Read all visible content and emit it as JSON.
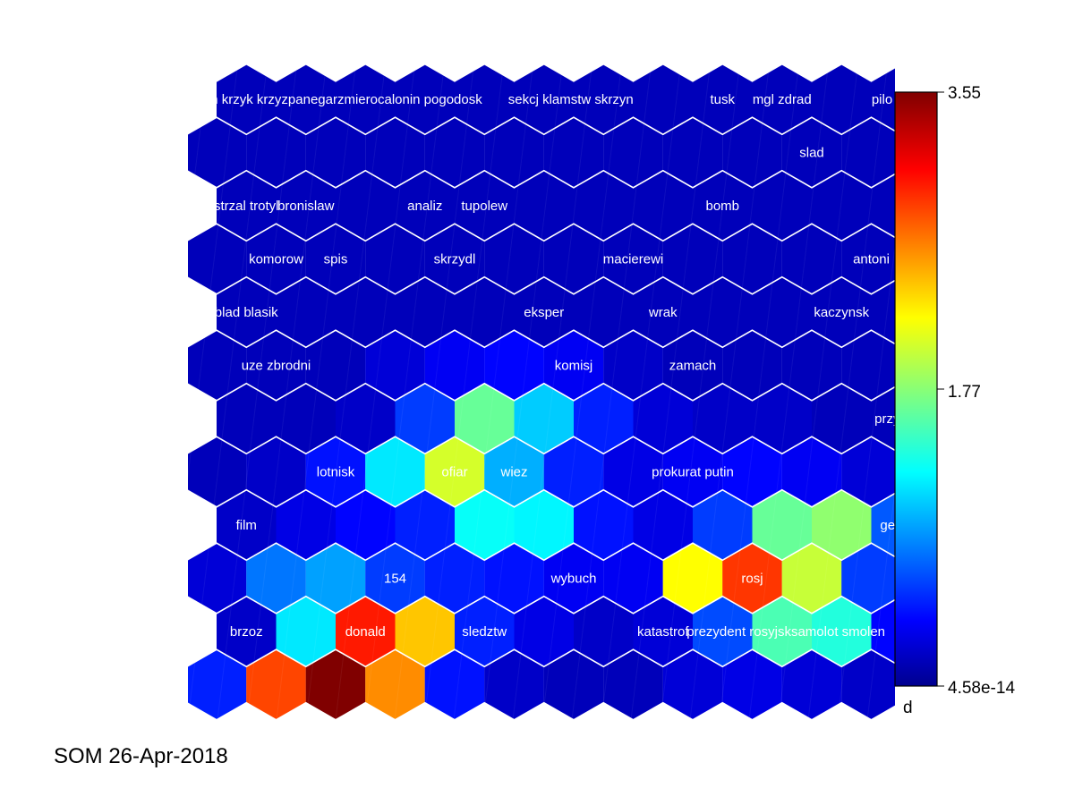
{
  "chart_data": {
    "type": "heatmap",
    "grid": "hexagonal",
    "title": "",
    "rows": 12,
    "cols": 12,
    "clim": [
      4.58e-14,
      3.55
    ],
    "colormap": "jet",
    "colorbar_ticks": [
      "3.55",
      "1.77",
      "4.58e-14"
    ],
    "values": [
      [
        0.15,
        0.15,
        0.15,
        0.15,
        0.15,
        0.15,
        0.15,
        0.15,
        0.15,
        0.15,
        0.15,
        0.15
      ],
      [
        0.15,
        0.15,
        0.15,
        0.15,
        0.15,
        0.15,
        0.15,
        0.15,
        0.15,
        0.15,
        0.15,
        0.15
      ],
      [
        0.15,
        0.15,
        0.15,
        0.15,
        0.15,
        0.15,
        0.15,
        0.15,
        0.15,
        0.15,
        0.15,
        0.15
      ],
      [
        0.15,
        0.15,
        0.15,
        0.15,
        0.15,
        0.15,
        0.15,
        0.15,
        0.15,
        0.15,
        0.15,
        0.15
      ],
      [
        0.15,
        0.15,
        0.15,
        0.15,
        0.15,
        0.15,
        0.15,
        0.15,
        0.15,
        0.15,
        0.15,
        0.15
      ],
      [
        0.15,
        0.15,
        0.15,
        0.25,
        0.35,
        0.4,
        0.35,
        0.2,
        0.15,
        0.15,
        0.15,
        0.15
      ],
      [
        0.15,
        0.15,
        0.2,
        0.6,
        1.65,
        1.1,
        0.5,
        0.25,
        0.2,
        0.2,
        0.15,
        0.15
      ],
      [
        0.15,
        0.2,
        0.45,
        1.2,
        2.05,
        1.0,
        0.5,
        0.3,
        0.35,
        0.4,
        0.35,
        0.25
      ],
      [
        0.2,
        0.3,
        0.4,
        0.5,
        1.3,
        1.25,
        0.45,
        0.3,
        0.6,
        1.65,
        1.8,
        0.7
      ],
      [
        0.25,
        0.8,
        0.95,
        0.6,
        0.5,
        0.45,
        0.35,
        0.35,
        2.2,
        2.9,
        2.0,
        0.6
      ],
      [
        0.2,
        1.2,
        3.0,
        2.4,
        0.5,
        0.3,
        0.2,
        0.25,
        0.65,
        1.55,
        1.4,
        0.4
      ],
      [
        0.5,
        2.85,
        3.55,
        2.6,
        0.45,
        0.2,
        0.15,
        0.15,
        0.25,
        0.3,
        0.25,
        0.2
      ]
    ],
    "labels": [
      {
        "text": "n krzyk krzyzpanegarzmierocalonin pogodosk",
        "row": 0,
        "col": 0
      },
      {
        "text": "sekcj klamstw skrzyn",
        "row": 0,
        "col": 5
      },
      {
        "text": "tusk",
        "row": 0,
        "col": 8
      },
      {
        "text": "mgl zdrad",
        "row": 0,
        "col": 9
      },
      {
        "text": "pilo swiad",
        "row": 0,
        "col": 11
      },
      {
        "text": "slad",
        "row": 1,
        "col": 10
      },
      {
        "text": "strzal trotyl",
        "row": 2,
        "col": 0
      },
      {
        "text": "bronislaw",
        "row": 2,
        "col": 1
      },
      {
        "text": "analiz",
        "row": 2,
        "col": 3
      },
      {
        "text": "tupolew",
        "row": 2,
        "col": 4
      },
      {
        "text": "bomb",
        "row": 2,
        "col": 8
      },
      {
        "text": "komorow",
        "row": 3,
        "col": 1
      },
      {
        "text": "spis",
        "row": 3,
        "col": 2
      },
      {
        "text": "skrzydl",
        "row": 3,
        "col": 4
      },
      {
        "text": "macierewi",
        "row": 3,
        "col": 7
      },
      {
        "text": "antoni",
        "row": 3,
        "col": 11
      },
      {
        "text": "blad blasik",
        "row": 4,
        "col": 0
      },
      {
        "text": "eksper",
        "row": 4,
        "col": 5
      },
      {
        "text": "wrak",
        "row": 4,
        "col": 7
      },
      {
        "text": "kaczynsk",
        "row": 4,
        "col": 10
      },
      {
        "text": "uze zbrodni",
        "row": 5,
        "col": 1
      },
      {
        "text": "komisj",
        "row": 5,
        "col": 6
      },
      {
        "text": "zamach",
        "row": 5,
        "col": 8
      },
      {
        "text": "przyczyn",
        "row": 6,
        "col": 11
      },
      {
        "text": "lotnisk",
        "row": 7,
        "col": 2
      },
      {
        "text": "ofiar",
        "row": 7,
        "col": 4
      },
      {
        "text": "wiez",
        "row": 7,
        "col": 5
      },
      {
        "text": "prokurat putin",
        "row": 7,
        "col": 8
      },
      {
        "text": "film",
        "row": 8,
        "col": 0
      },
      {
        "text": "genera",
        "row": 8,
        "col": 11
      },
      {
        "text": "154",
        "row": 9,
        "col": 3
      },
      {
        "text": "wybuch",
        "row": 9,
        "col": 6
      },
      {
        "text": "rosj",
        "row": 9,
        "col": 9
      },
      {
        "text": "brzoz",
        "row": 10,
        "col": 0
      },
      {
        "text": "donald",
        "row": 10,
        "col": 2
      },
      {
        "text": "sledztw",
        "row": 10,
        "col": 4
      },
      {
        "text": "katastrof",
        "row": 10,
        "col": 7
      },
      {
        "text": "prezydent rosyjsksamolot smolen",
        "row": 10,
        "col": 8
      }
    ],
    "extra_label": {
      "text": "d"
    }
  },
  "caption": "SOM 26-Apr-2018"
}
